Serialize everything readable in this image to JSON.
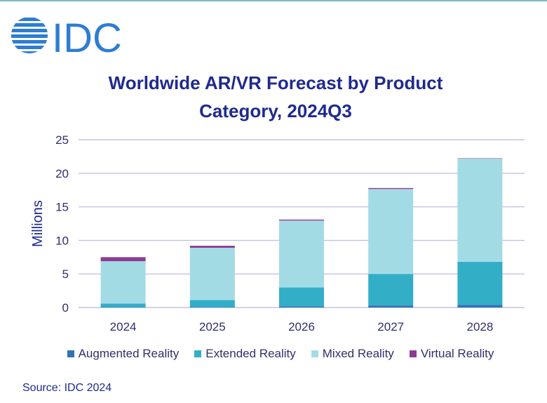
{
  "brand": {
    "logo_text": "IDC"
  },
  "source": "Source: IDC 2024",
  "colors": {
    "title": "#1f2a8f",
    "grid": "#c4c0e2",
    "axis_text": "#2f2f6f",
    "augmented": "#2e74b5",
    "extended": "#33aec7",
    "mixed": "#a3dbe5",
    "virtual": "#8e3c91"
  },
  "chart_data": {
    "type": "bar",
    "stacked": true,
    "title_line1": "Worldwide AR/VR Forecast by Product",
    "title_line2": "Category, 2024Q3",
    "xlabel": "",
    "ylabel": "Millions",
    "ylim": [
      0,
      25
    ],
    "yticks": [
      0,
      5,
      10,
      15,
      20,
      25
    ],
    "grid": true,
    "legend_position": "bottom",
    "categories": [
      "2024",
      "2025",
      "2026",
      "2027",
      "2028"
    ],
    "series": [
      {
        "name": "Augmented Reality",
        "color_key": "augmented",
        "values": [
          0.05,
          0.05,
          0.15,
          0.3,
          0.4
        ]
      },
      {
        "name": "Extended Reality",
        "color_key": "extended",
        "values": [
          0.55,
          1.05,
          2.85,
          4.7,
          6.4
        ]
      },
      {
        "name": "Mixed Reality",
        "color_key": "mixed",
        "values": [
          6.3,
          7.8,
          9.95,
          12.65,
          15.4
        ]
      },
      {
        "name": "Virtual Reality",
        "color_key": "virtual",
        "values": [
          0.6,
          0.3,
          0.15,
          0.15,
          0.05
        ]
      }
    ]
  }
}
